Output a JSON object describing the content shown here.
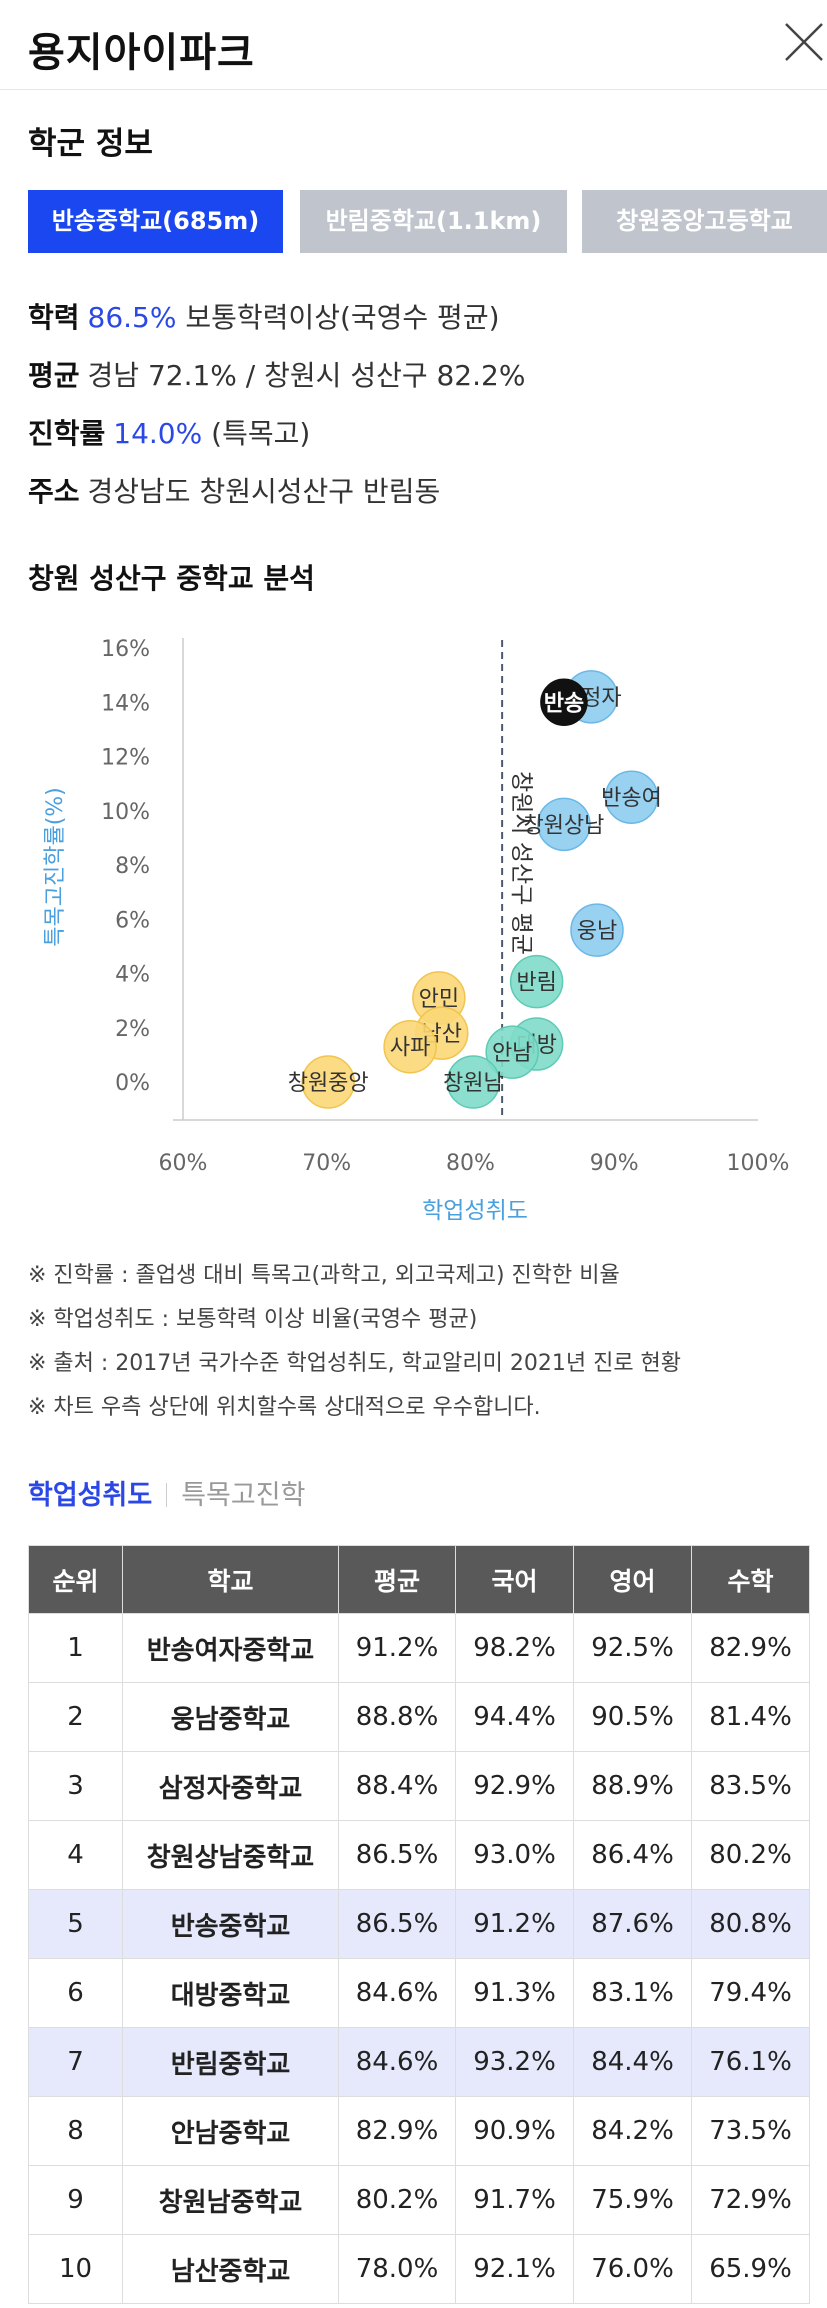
{
  "header": {
    "title": "용지아이파크"
  },
  "section_title": "학군 정보",
  "school_tabs": [
    {
      "label": "반송중학교(685m)"
    },
    {
      "label": "반림중학교(1.1km)"
    },
    {
      "label": "창원중앙고등학교"
    }
  ],
  "info": {
    "academic": {
      "label": "학력",
      "value": "86.5%",
      "text": "보통학력이상(국영수 평균)"
    },
    "average": {
      "label": "평균",
      "text": "경남 72.1% / 창원시 성산구 82.2%"
    },
    "advancement": {
      "label": "진학률",
      "value": "14.0%",
      "text": "(특목고)"
    },
    "address": {
      "label": "주소",
      "text": "경상남도 창원시성산구 반림동"
    }
  },
  "chart_title": "창원 성산구 중학교 분석",
  "chart_data": {
    "type": "scatter",
    "xlabel": "학업성취도",
    "ylabel": "특목고진학률(%)",
    "xlim": [
      60,
      100
    ],
    "ylim": [
      0,
      16
    ],
    "x_ticks": [
      "60%",
      "70%",
      "80%",
      "90%",
      "100%"
    ],
    "y_ticks": [
      "0%",
      "2%",
      "4%",
      "6%",
      "8%",
      "10%",
      "12%",
      "14%",
      "16%"
    ],
    "reference_line": {
      "x": 82.2,
      "label": "창원시 성산구 평균"
    },
    "grid": false,
    "colors": {
      "blue": "#8ecdf0",
      "green": "#7fdbc9",
      "yellow": "#fbd776",
      "selected": "#111111",
      "axis_label": "#4a9fdf",
      "line": "#4a5a70"
    },
    "points": [
      {
        "name": "반송여",
        "x": 91.2,
        "y": 10.5,
        "color": "blue"
      },
      {
        "name": "삼정자",
        "x": 88.4,
        "y": 14.2,
        "color": "blue"
      },
      {
        "name": "창원상남",
        "x": 86.5,
        "y": 9.5,
        "color": "blue"
      },
      {
        "name": "웅남",
        "x": 88.8,
        "y": 5.6,
        "color": "blue"
      },
      {
        "name": "반림",
        "x": 84.6,
        "y": 3.7,
        "color": "green"
      },
      {
        "name": "대방",
        "x": 84.6,
        "y": 1.4,
        "color": "green"
      },
      {
        "name": "안남",
        "x": 82.9,
        "y": 1.1,
        "color": "green"
      },
      {
        "name": "창원남",
        "x": 80.2,
        "y": 0.0,
        "color": "green"
      },
      {
        "name": "안민",
        "x": 77.8,
        "y": 3.1,
        "color": "yellow"
      },
      {
        "name": "남산",
        "x": 78.0,
        "y": 1.8,
        "color": "yellow"
      },
      {
        "name": "사파",
        "x": 75.8,
        "y": 1.3,
        "color": "yellow"
      },
      {
        "name": "창원중앙",
        "x": 70.1,
        "y": 0.0,
        "color": "yellow"
      },
      {
        "name": "반송",
        "x": 86.5,
        "y": 14.0,
        "color": "selected"
      }
    ]
  },
  "notes": [
    "※ 진학률 : 졸업생 대비 특목고(과학고, 외고국제고) 진학한 비율",
    "※ 학업성취도 : 보통학력 이상 비율(국영수 평균)",
    "※ 출처 : 2017년 국가수준 학업성취도, 학교알리미 2021년 진로 현황",
    "※ 차트 우측 상단에 위치할수록 상대적으로 우수합니다."
  ],
  "sub_tabs": [
    {
      "label": "학업성취도"
    },
    {
      "label": "특목고진학"
    }
  ],
  "table": {
    "headers": [
      "순위",
      "학교",
      "평균",
      "국어",
      "영어",
      "수학"
    ],
    "rows": [
      [
        "1",
        "반송여자중학교",
        "91.2%",
        "98.2%",
        "92.5%",
        "82.9%"
      ],
      [
        "2",
        "웅남중학교",
        "88.8%",
        "94.4%",
        "90.5%",
        "81.4%"
      ],
      [
        "3",
        "삼정자중학교",
        "88.4%",
        "92.9%",
        "88.9%",
        "83.5%"
      ],
      [
        "4",
        "창원상남중학교",
        "86.5%",
        "93.0%",
        "86.4%",
        "80.2%"
      ],
      [
        "5",
        "반송중학교",
        "86.5%",
        "91.2%",
        "87.6%",
        "80.8%"
      ],
      [
        "6",
        "대방중학교",
        "84.6%",
        "91.3%",
        "83.1%",
        "79.4%"
      ],
      [
        "7",
        "반림중학교",
        "84.6%",
        "93.2%",
        "84.4%",
        "76.1%"
      ],
      [
        "8",
        "안남중학교",
        "82.9%",
        "90.9%",
        "84.2%",
        "73.5%"
      ],
      [
        "9",
        "창원남중학교",
        "80.2%",
        "91.7%",
        "75.9%",
        "72.9%"
      ],
      [
        "10",
        "남산중학교",
        "78.0%",
        "92.1%",
        "76.0%",
        "65.9%"
      ]
    ],
    "highlighted_rows": [
      5,
      7
    ]
  }
}
